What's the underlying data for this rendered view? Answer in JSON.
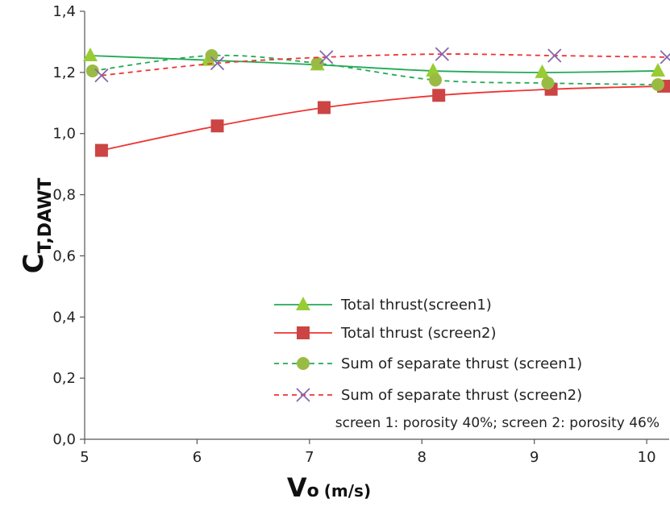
{
  "chart_data": {
    "type": "line",
    "xlabel": {
      "main": "V",
      "sub": "o",
      "unit": "(m/s)"
    },
    "ylabel": {
      "main": "C",
      "sub": "T,DAWT"
    },
    "xlim": [
      5,
      10.2
    ],
    "ylim": [
      0.0,
      1.4
    ],
    "xticks": [
      5,
      6,
      7,
      8,
      9,
      10
    ],
    "yticks": [
      0.0,
      0.2,
      0.4,
      0.6,
      0.8,
      1.0,
      1.2,
      1.4
    ],
    "xtick_labels": [
      "5",
      "6",
      "7",
      "8",
      "9",
      "10"
    ],
    "ytick_labels": [
      "0,0",
      "0,2",
      "0,4",
      "0,6",
      "0,8",
      "1,0",
      "1,2",
      "1,4"
    ],
    "grid": false,
    "legend_position": "lower-right",
    "series": [
      {
        "name": "Total thrust(screen1)",
        "color": "#22aa55",
        "marker_color": "#99cc33",
        "line_style": "solid",
        "marker": "triangle",
        "x": [
          5.05,
          6.1,
          7.07,
          8.1,
          9.07,
          10.1
        ],
        "y": [
          1.255,
          1.24,
          1.225,
          1.205,
          1.2,
          1.205
        ]
      },
      {
        "name": "Total thrust (screen2)",
        "color": "#ee3333",
        "marker_color": "#cc4444",
        "line_style": "solid",
        "marker": "square",
        "x": [
          5.15,
          6.18,
          7.13,
          8.15,
          9.15,
          10.15
        ],
        "y": [
          0.945,
          1.025,
          1.085,
          1.125,
          1.145,
          1.155
        ]
      },
      {
        "name": "Sum of separate thrust (screen1)",
        "color": "#22aa55",
        "marker_color": "#99bb44",
        "line_style": "dashed",
        "marker": "circle",
        "x": [
          5.07,
          6.13,
          7.07,
          8.12,
          9.12,
          10.1
        ],
        "y": [
          1.205,
          1.255,
          1.23,
          1.175,
          1.165,
          1.16
        ]
      },
      {
        "name": "Sum of separate thrust (screen2)",
        "color": "#ee3333",
        "marker_color": "#8866aa",
        "line_style": "dashed",
        "marker": "x",
        "x": [
          5.15,
          6.18,
          7.15,
          8.18,
          9.18,
          10.18
        ],
        "y": [
          1.19,
          1.23,
          1.25,
          1.26,
          1.255,
          1.25
        ]
      }
    ],
    "annotation": "screen 1: porosity 40%; screen 2: porosity 46%"
  }
}
